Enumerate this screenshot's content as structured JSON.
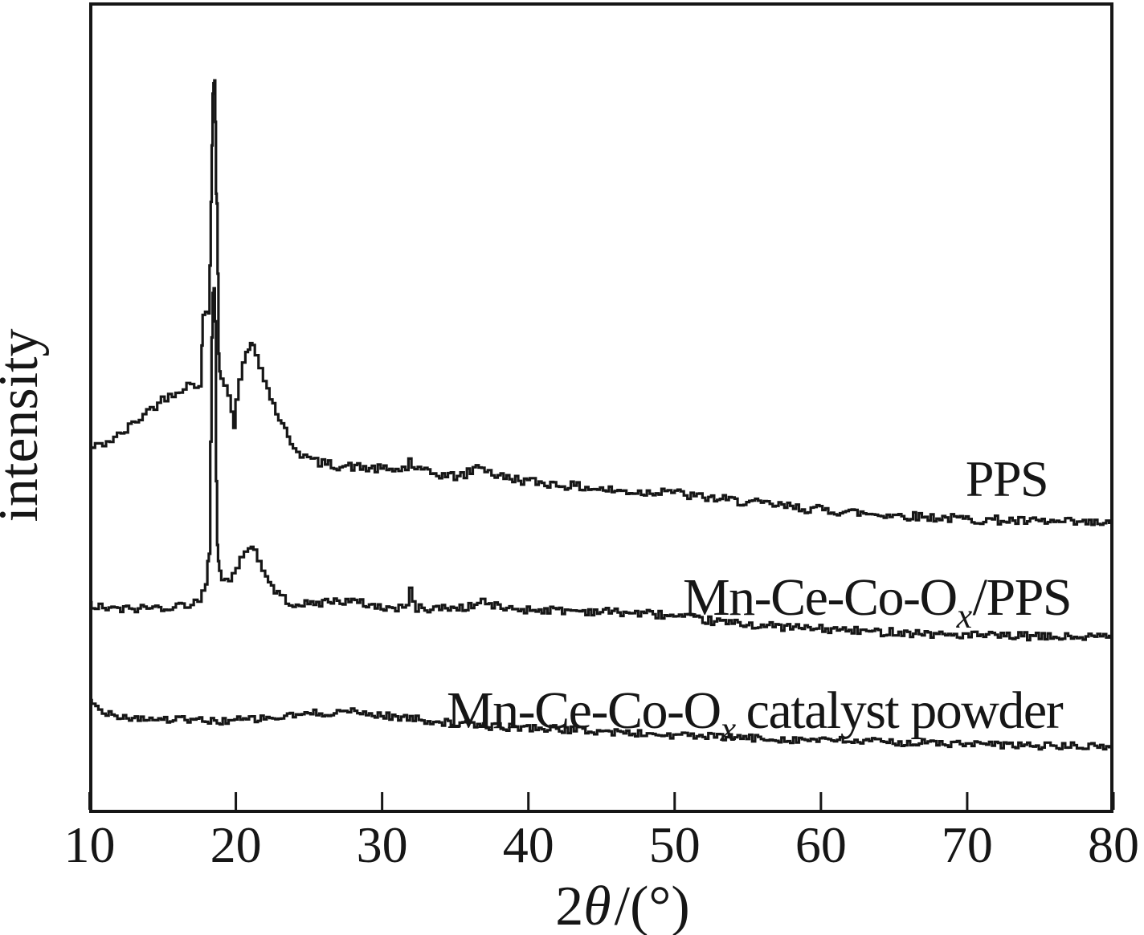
{
  "figure": {
    "kind": "XRD diffraction pattern figure",
    "background_color": "#ffffff",
    "line_color": "#161616"
  },
  "chart_data": {
    "type": "line",
    "title": "",
    "xlabel": "2θ/(°)",
    "xlabel_parts": {
      "pre": "2",
      "italic": "θ",
      "post": "/(°)"
    },
    "ylabel": "intensity",
    "xlim": [
      10,
      80
    ],
    "ylim": [
      0,
      100
    ],
    "x_ticks": [
      10,
      20,
      30,
      40,
      50,
      60,
      70,
      80
    ],
    "y_ticks": [],
    "grid": false,
    "legend_position": "inline-annotations",
    "intensity_units": "a.u.",
    "noise_seed": 42,
    "resample_step_deg": 0.22,
    "series": [
      {
        "name": "PPS",
        "noise_amplitude": 0.55,
        "peaks_2theta": [
          18.5,
          21.0
        ],
        "points": [
          [
            10,
            45.0
          ],
          [
            10.5,
            45.2
          ],
          [
            11,
            45.6
          ],
          [
            11.5,
            46.0
          ],
          [
            12,
            46.5
          ],
          [
            12.5,
            47.2
          ],
          [
            13,
            48.0
          ],
          [
            13.5,
            48.8
          ],
          [
            14,
            49.6
          ],
          [
            14.5,
            50.3
          ],
          [
            15,
            51.0
          ],
          [
            15.5,
            51.6
          ],
          [
            16,
            52.1
          ],
          [
            16.5,
            52.6
          ],
          [
            17,
            52.9
          ],
          [
            17.3,
            53.0
          ],
          [
            17.6,
            53.0
          ],
          [
            17.7,
            57.7
          ],
          [
            17.75,
            61.5
          ],
          [
            18.05,
            61.5
          ],
          [
            18.15,
            61.7
          ],
          [
            18.25,
            67.6
          ],
          [
            18.32,
            75.5
          ],
          [
            18.38,
            82.5
          ],
          [
            18.44,
            88.9
          ],
          [
            18.5,
            90.2
          ],
          [
            18.56,
            90.2
          ],
          [
            18.62,
            85.4
          ],
          [
            18.66,
            76.5
          ],
          [
            18.72,
            75.3
          ],
          [
            18.78,
            66.6
          ],
          [
            18.84,
            56.7
          ],
          [
            18.9,
            54.5
          ],
          [
            19.0,
            53.8
          ],
          [
            19.3,
            52.8
          ],
          [
            19.55,
            51.5
          ],
          [
            19.75,
            49.5
          ],
          [
            19.9,
            47.5
          ],
          [
            20.05,
            51.0
          ],
          [
            20.3,
            53.5
          ],
          [
            20.55,
            55.6
          ],
          [
            20.75,
            56.9
          ],
          [
            20.9,
            57.7
          ],
          [
            21.05,
            58.5
          ],
          [
            21.2,
            57.7
          ],
          [
            21.4,
            56.5
          ],
          [
            21.7,
            54.9
          ],
          [
            22.0,
            53.3
          ],
          [
            22.4,
            51.3
          ],
          [
            22.8,
            49.5
          ],
          [
            23.2,
            47.8
          ],
          [
            23.6,
            46.4
          ],
          [
            24.0,
            45.2
          ],
          [
            24.5,
            44.3
          ],
          [
            25.0,
            43.7
          ],
          [
            25.5,
            43.3
          ],
          [
            26,
            43.1
          ],
          [
            27,
            42.8
          ],
          [
            28,
            42.7
          ],
          [
            29,
            42.5
          ],
          [
            30,
            42.4
          ],
          [
            31,
            42.3
          ],
          [
            31.7,
            42.5
          ],
          [
            31.9,
            43.7
          ],
          [
            32.1,
            42.6
          ],
          [
            33,
            42.0
          ],
          [
            34,
            41.7
          ],
          [
            35,
            41.5
          ],
          [
            35.7,
            41.7
          ],
          [
            36.3,
            42.4
          ],
          [
            36.7,
            42.9
          ],
          [
            37.1,
            42.4
          ],
          [
            37.6,
            41.8
          ],
          [
            38,
            41.5
          ],
          [
            39,
            41.2
          ],
          [
            40,
            40.9
          ],
          [
            41,
            40.7
          ],
          [
            42,
            40.5
          ],
          [
            43,
            40.3
          ],
          [
            44,
            40.1
          ],
          [
            45,
            39.9
          ],
          [
            46,
            39.7
          ],
          [
            47,
            39.6
          ],
          [
            48,
            39.5
          ],
          [
            48.8,
            39.6
          ],
          [
            49.4,
            40.0
          ],
          [
            49.9,
            39.6
          ],
          [
            50.5,
            39.3
          ],
          [
            51,
            39.1
          ],
          [
            52,
            38.9
          ],
          [
            53,
            38.7
          ],
          [
            54,
            38.5
          ],
          [
            55,
            38.3
          ],
          [
            56,
            38.1
          ],
          [
            57,
            37.9
          ],
          [
            58,
            37.7
          ],
          [
            59,
            37.5
          ],
          [
            60,
            37.4
          ],
          [
            61,
            37.2
          ],
          [
            62,
            37.1
          ],
          [
            63,
            36.9
          ],
          [
            64,
            36.8
          ],
          [
            65,
            36.7
          ],
          [
            66,
            36.6
          ],
          [
            67,
            36.5
          ],
          [
            68,
            36.4
          ],
          [
            69,
            36.3
          ],
          [
            70,
            36.2
          ],
          [
            71,
            36.1
          ],
          [
            72,
            36.1
          ],
          [
            73,
            36.0
          ],
          [
            74,
            35.9
          ],
          [
            75,
            35.9
          ],
          [
            76,
            35.8
          ],
          [
            77,
            35.8
          ],
          [
            78,
            35.7
          ],
          [
            79,
            35.7
          ],
          [
            80,
            35.6
          ]
        ]
      },
      {
        "name": "Mn-Ce-Co-Ox/PPS",
        "noise_amplitude": 0.5,
        "peaks_2theta": [
          18.5,
          21.0,
          32.0
        ],
        "points": [
          [
            10,
            25.7
          ],
          [
            10.5,
            25.3
          ],
          [
            11,
            25.2
          ],
          [
            12,
            25.0
          ],
          [
            13,
            25.1
          ],
          [
            14,
            25.2
          ],
          [
            15,
            25.3
          ],
          [
            16,
            25.4
          ],
          [
            17,
            25.8
          ],
          [
            17.5,
            26.2
          ],
          [
            17.8,
            27.0
          ],
          [
            18.0,
            28.0
          ],
          [
            18.1,
            31.0
          ],
          [
            18.2,
            31.5
          ],
          [
            18.3,
            45.8
          ],
          [
            18.38,
            58.7
          ],
          [
            18.45,
            64.2
          ],
          [
            18.52,
            64.4
          ],
          [
            18.6,
            60.7
          ],
          [
            18.68,
            40.9
          ],
          [
            18.75,
            33.0
          ],
          [
            18.82,
            31.0
          ],
          [
            18.9,
            29.8
          ],
          [
            19.1,
            28.8
          ],
          [
            19.35,
            29.2
          ],
          [
            19.6,
            28.4
          ],
          [
            19.85,
            29.5
          ],
          [
            20.1,
            30.4
          ],
          [
            20.4,
            31.5
          ],
          [
            20.7,
            32.2
          ],
          [
            20.95,
            32.8
          ],
          [
            21.1,
            33.0
          ],
          [
            21.3,
            32.2
          ],
          [
            21.6,
            31.0
          ],
          [
            21.9,
            29.8
          ],
          [
            22.3,
            28.4
          ],
          [
            22.7,
            27.4
          ],
          [
            23.1,
            26.6
          ],
          [
            23.5,
            26.1
          ],
          [
            24,
            25.8
          ],
          [
            25,
            25.6
          ],
          [
            25.6,
            25.8
          ],
          [
            26.2,
            26.0
          ],
          [
            27,
            26.1
          ],
          [
            27.8,
            26.0
          ],
          [
            28.6,
            25.8
          ],
          [
            29.4,
            25.5
          ],
          [
            30,
            25.3
          ],
          [
            31,
            25.1
          ],
          [
            31.75,
            25.3
          ],
          [
            31.95,
            27.7
          ],
          [
            32.15,
            26.0
          ],
          [
            32.4,
            25.2
          ],
          [
            33,
            25.1
          ],
          [
            34,
            25.2
          ],
          [
            35,
            25.2
          ],
          [
            36,
            25.3
          ],
          [
            36.6,
            25.8
          ],
          [
            36.9,
            26.2
          ],
          [
            37.2,
            25.7
          ],
          [
            38,
            25.3
          ],
          [
            39,
            25.1
          ],
          [
            40,
            25.0
          ],
          [
            41,
            25.0
          ],
          [
            42,
            24.9
          ],
          [
            43,
            24.9
          ],
          [
            44,
            24.8
          ],
          [
            45,
            24.8
          ],
          [
            46,
            24.7
          ],
          [
            47,
            24.6
          ],
          [
            48,
            24.5
          ],
          [
            49,
            24.4
          ],
          [
            50,
            24.1
          ],
          [
            51,
            23.9
          ],
          [
            52,
            23.7
          ],
          [
            53,
            23.5
          ],
          [
            54,
            23.3
          ],
          [
            55,
            23.2
          ],
          [
            56,
            23.0
          ],
          [
            57,
            22.9
          ],
          [
            58,
            22.8
          ],
          [
            59,
            22.7
          ],
          [
            60,
            22.6
          ],
          [
            61,
            22.5
          ],
          [
            62,
            22.4
          ],
          [
            63,
            22.3
          ],
          [
            64,
            22.2
          ],
          [
            65,
            22.3
          ],
          [
            66,
            22.1
          ],
          [
            67,
            22.1
          ],
          [
            68,
            21.9
          ],
          [
            69,
            21.9
          ],
          [
            70,
            21.8
          ],
          [
            71,
            21.8
          ],
          [
            72,
            21.7
          ],
          [
            73,
            21.7
          ],
          [
            74,
            21.7
          ],
          [
            75,
            21.6
          ],
          [
            76,
            21.6
          ],
          [
            77,
            21.6
          ],
          [
            78,
            21.6
          ],
          [
            79,
            21.6
          ],
          [
            80,
            21.6
          ]
        ]
      },
      {
        "name": "Mn-Ce-Co-Ox catalyst powder",
        "noise_amplitude": 0.45,
        "peaks_2theta": [],
        "points": [
          [
            10,
            13.7
          ],
          [
            10.3,
            13.2
          ],
          [
            10.7,
            12.7
          ],
          [
            11,
            12.4
          ],
          [
            12,
            11.9
          ],
          [
            13,
            11.6
          ],
          [
            14,
            11.5
          ],
          [
            15,
            11.4
          ],
          [
            16,
            11.4
          ],
          [
            17,
            11.3
          ],
          [
            18,
            11.2
          ],
          [
            19,
            11.2
          ],
          [
            20,
            11.3
          ],
          [
            21,
            11.4
          ],
          [
            22,
            11.5
          ],
          [
            23,
            11.6
          ],
          [
            24,
            11.9
          ],
          [
            25,
            12.1
          ],
          [
            26,
            12.2
          ],
          [
            27,
            12.3
          ],
          [
            27.5,
            12.5
          ],
          [
            28,
            12.3
          ],
          [
            29,
            12.1
          ],
          [
            30,
            11.9
          ],
          [
            31,
            11.7
          ],
          [
            32,
            11.5
          ],
          [
            33,
            11.3
          ],
          [
            34,
            11.1
          ],
          [
            35,
            10.9
          ],
          [
            36,
            10.7
          ],
          [
            37,
            10.6
          ],
          [
            38,
            10.5
          ],
          [
            39,
            10.4
          ],
          [
            40,
            10.4
          ],
          [
            41,
            10.3
          ],
          [
            42,
            10.2
          ],
          [
            43,
            10.1
          ],
          [
            44,
            10.0
          ],
          [
            45,
            9.9
          ],
          [
            46,
            9.8
          ],
          [
            47,
            9.7
          ],
          [
            48,
            9.6
          ],
          [
            49,
            9.5
          ],
          [
            50,
            9.4
          ],
          [
            51,
            9.4
          ],
          [
            52,
            9.3
          ],
          [
            53,
            9.2
          ],
          [
            54,
            9.2
          ],
          [
            55,
            9.1
          ],
          [
            56,
            9.0
          ],
          [
            57,
            9.0
          ],
          [
            58,
            8.9
          ],
          [
            59,
            8.9
          ],
          [
            60,
            8.8
          ],
          [
            61,
            8.8
          ],
          [
            62,
            8.7
          ],
          [
            63,
            8.7
          ],
          [
            64,
            8.6
          ],
          [
            65,
            8.6
          ],
          [
            66,
            8.5
          ],
          [
            67,
            8.5
          ],
          [
            68,
            8.4
          ],
          [
            69,
            8.4
          ],
          [
            70,
            8.3
          ],
          [
            71,
            8.3
          ],
          [
            72,
            8.2
          ],
          [
            73,
            8.2
          ],
          [
            74,
            8.2
          ],
          [
            75,
            8.1
          ],
          [
            76,
            8.1
          ],
          [
            77,
            8.1
          ],
          [
            78,
            8.0
          ],
          [
            79,
            8.0
          ],
          [
            80,
            8.0
          ]
        ]
      }
    ]
  },
  "annotations": [
    {
      "pre": "PPS",
      "sub": "",
      "post": ""
    },
    {
      "pre": "Mn-Ce-Co-O",
      "sub": "x",
      "post": "/PPS"
    },
    {
      "pre": "Mn-Ce-Co-O",
      "sub": "x",
      "post": "catalyst powder"
    }
  ]
}
